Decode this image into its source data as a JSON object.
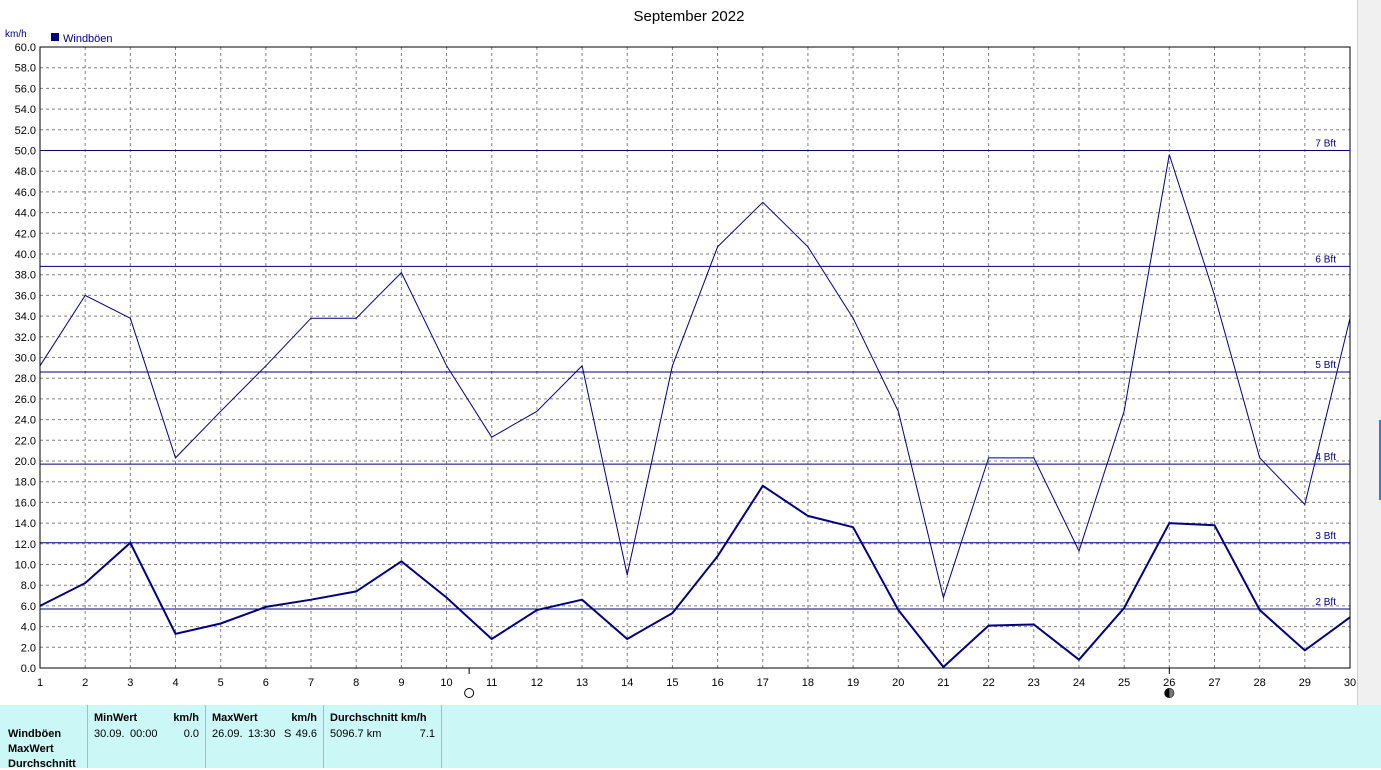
{
  "chart_data": {
    "type": "line",
    "title": "September 2022",
    "ylabel": "km/h",
    "ylim": [
      0,
      60
    ],
    "ytick_step": 2,
    "grid": true,
    "legend": {
      "position": "top-left",
      "label": "Windböen"
    },
    "x": [
      1,
      2,
      3,
      4,
      5,
      6,
      7,
      8,
      9,
      10,
      11,
      12,
      13,
      14,
      15,
      16,
      17,
      18,
      19,
      20,
      21,
      22,
      23,
      24,
      25,
      26,
      27,
      28,
      29,
      30
    ],
    "series": [
      {
        "name": "Windböen",
        "color": "#000080",
        "stroke": "thin",
        "values": [
          29.2,
          36.0,
          33.8,
          20.3,
          24.8,
          29.2,
          33.8,
          33.8,
          38.2,
          29.2,
          22.3,
          24.8,
          29.2,
          9.0,
          29.2,
          40.7,
          45.0,
          40.7,
          33.8,
          24.8,
          6.8,
          20.3,
          20.3,
          11.3,
          24.8,
          49.6,
          36.0,
          20.3,
          15.8,
          33.8
        ]
      },
      {
        "color": "#000080",
        "stroke": "thick",
        "values": [
          6.0,
          8.2,
          12.1,
          3.3,
          4.3,
          5.9,
          6.6,
          7.4,
          10.3,
          6.8,
          2.8,
          5.6,
          6.6,
          2.8,
          5.3,
          10.8,
          17.6,
          14.7,
          13.6,
          5.6,
          0.1,
          4.1,
          4.2,
          0.8,
          5.8,
          14.0,
          13.8,
          5.6,
          1.7,
          4.9
        ]
      }
    ],
    "beaufort_lines": [
      {
        "value": 5.7,
        "label": "2 Bft"
      },
      {
        "value": 12.1,
        "label": "3 Bft"
      },
      {
        "value": 19.7,
        "label": "4 Bft"
      },
      {
        "value": 28.6,
        "label": "5 Bft"
      },
      {
        "value": 38.8,
        "label": "6 Bft"
      },
      {
        "value": 50.0,
        "label": "7 Bft"
      }
    ],
    "moon_markers": [
      {
        "x": 10.5,
        "phase": "full-moon"
      },
      {
        "x": 26,
        "phase": "new-moon"
      }
    ]
  },
  "colors": {
    "series": "#000080",
    "grid": "#808080",
    "stats_bg": "#ccf7f7"
  },
  "stats": {
    "rows": [
      "Windböen",
      "MaxWert",
      "Durchschnitt"
    ],
    "min": {
      "title": "MinWert",
      "unit": "km/h",
      "date": "30.09.",
      "time": "00:00",
      "value": "0.0"
    },
    "max": {
      "title": "MaxWert",
      "unit": "km/h",
      "date": "26.09.",
      "time": "13:30",
      "dir": "S",
      "value": "49.6"
    },
    "avg": {
      "title": "Durchschnitt km/h",
      "distance": "5096.7 km",
      "value": "7.1"
    }
  }
}
